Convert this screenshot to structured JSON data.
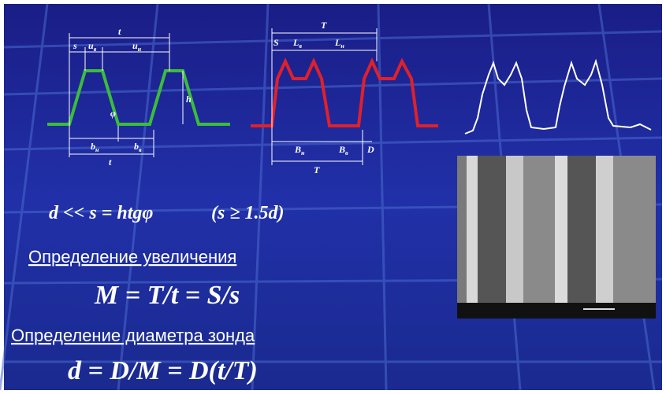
{
  "slide": {
    "trapezoid_labels": {
      "t_top": "t",
      "s": "s",
      "u1": {
        "main": "u",
        "sub": "в"
      },
      "u2": {
        "main": "u",
        "sub": "н"
      },
      "h": "h",
      "phi": "φ",
      "b1": {
        "main": "b",
        "sub": "н"
      },
      "b2": {
        "main": "b",
        "sub": "в"
      },
      "t_bottom": "t"
    },
    "profile_labels": {
      "T_top": "T",
      "S": "S",
      "L1": {
        "main": "L",
        "sub": "в"
      },
      "L2": {
        "main": "L",
        "sub": "н"
      },
      "B1": {
        "main": "B",
        "sub": "н"
      },
      "B2": {
        "main": "B",
        "sub": "в"
      },
      "D": "D",
      "T_bottom": "T"
    },
    "formula_condition": "d << s = htgφ",
    "formula_condition_note": "(s ≥ 1.5d)",
    "heading_magnification": "Определение увеличения",
    "formula_magnification": "M = T/t = S/s",
    "heading_probe": "Определение диаметра зонда",
    "formula_probe": "d = D/M = D(t/T)"
  }
}
